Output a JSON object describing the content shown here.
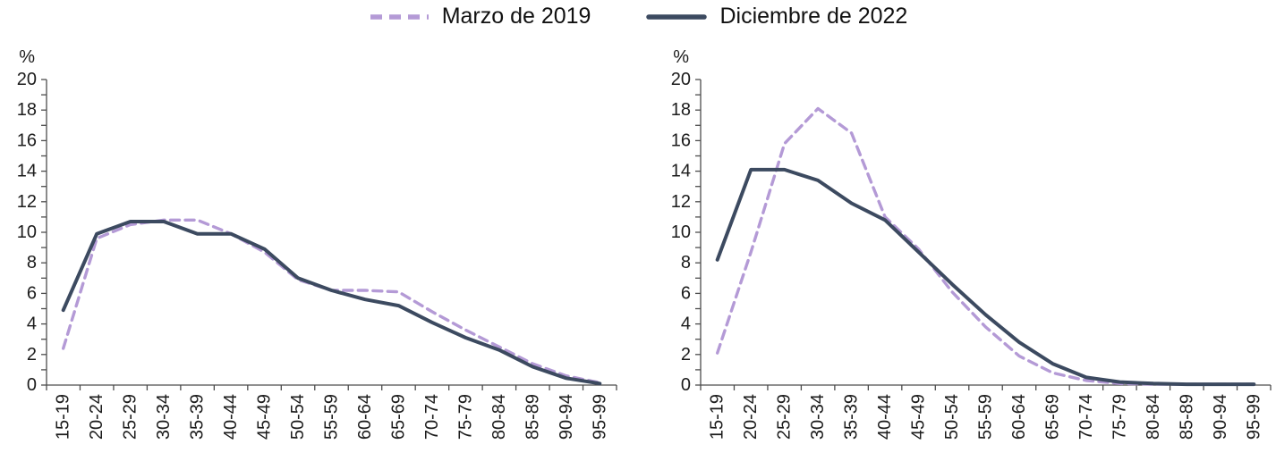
{
  "legend": {
    "items": [
      {
        "label": "Marzo de 2019",
        "color": "#b49ad6",
        "line_style": "dashed"
      },
      {
        "label": "Diciembre de 2022",
        "color": "#3c4a60",
        "line_style": "solid"
      }
    ]
  },
  "axes": {
    "y_unit_label": "%",
    "y_min": 0,
    "y_max": 20,
    "y_label_step": 2,
    "y_minor_tick_step": 1,
    "text_color": "#1c1c1c",
    "axis_color": "#4d4d4d"
  },
  "chart_data": [
    {
      "type": "line",
      "position": "left",
      "title": "",
      "xlabel": "",
      "ylabel": "%",
      "ylim": [
        0,
        20
      ],
      "grid": false,
      "legend_position": "top-center-shared",
      "categories": [
        "15-19",
        "20-24",
        "25-29",
        "30-34",
        "35-39",
        "40-44",
        "45-49",
        "50-54",
        "55-59",
        "60-64",
        "65-69",
        "70-74",
        "75-79",
        "80-84",
        "85-89",
        "90-94",
        "95-99"
      ],
      "series": [
        {
          "name": "Marzo de 2019",
          "style": "dashed",
          "color": "#b49ad6",
          "values": [
            2.4,
            9.6,
            10.5,
            10.8,
            10.8,
            9.9,
            8.7,
            6.9,
            6.2,
            6.2,
            6.1,
            4.8,
            3.6,
            2.5,
            1.4,
            0.6,
            0.15
          ]
        },
        {
          "name": "Diciembre de 2022",
          "style": "solid",
          "color": "#3c4a60",
          "values": [
            4.9,
            9.9,
            10.7,
            10.7,
            9.9,
            9.9,
            8.9,
            7.0,
            6.2,
            5.6,
            5.2,
            4.1,
            3.1,
            2.3,
            1.2,
            0.45,
            0.1
          ]
        }
      ]
    },
    {
      "type": "line",
      "position": "right",
      "title": "",
      "xlabel": "",
      "ylabel": "%",
      "ylim": [
        0,
        20
      ],
      "grid": false,
      "legend_position": "top-center-shared",
      "categories": [
        "15-19",
        "20-24",
        "25-29",
        "30-34",
        "35-39",
        "40-44",
        "45-49",
        "50-54",
        "55-59",
        "60-64",
        "65-69",
        "70-74",
        "75-79",
        "80-84",
        "85-89",
        "90-94",
        "95-99"
      ],
      "series": [
        {
          "name": "Marzo de 2019",
          "style": "dashed",
          "color": "#b49ad6",
          "values": [
            2.1,
            8.7,
            15.8,
            18.1,
            16.5,
            11.0,
            8.9,
            6.1,
            3.8,
            1.9,
            0.8,
            0.3,
            0.1,
            0.05,
            0.05,
            0.05,
            0.05
          ]
        },
        {
          "name": "Diciembre de 2022",
          "style": "solid",
          "color": "#3c4a60",
          "values": [
            8.2,
            14.1,
            14.1,
            13.4,
            11.9,
            10.8,
            8.7,
            6.6,
            4.6,
            2.8,
            1.4,
            0.5,
            0.2,
            0.1,
            0.05,
            0.05,
            0.05
          ]
        }
      ]
    }
  ]
}
